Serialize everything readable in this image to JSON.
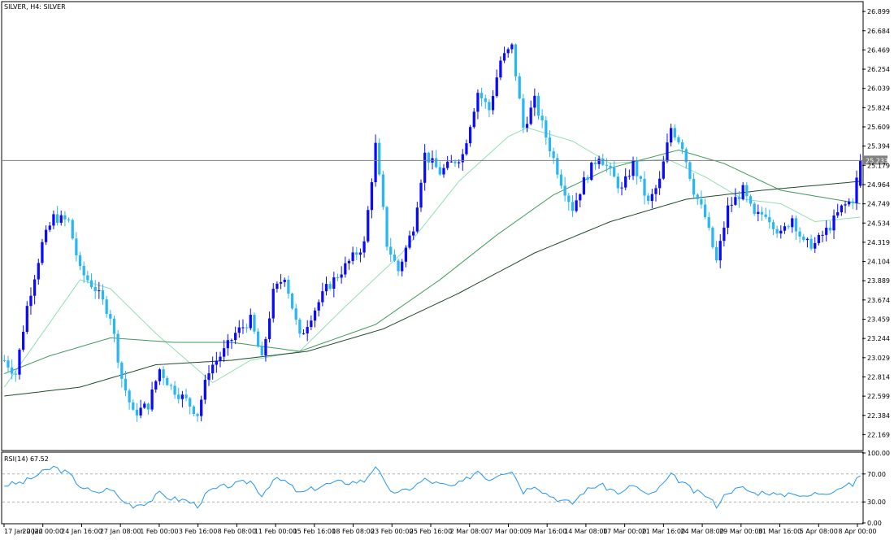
{
  "window": {
    "title": "SILVER, H4:  SILVER"
  },
  "colors": {
    "bull": "#0a0aff",
    "bear": "#29b6f6",
    "ma_fast": "#8fe0b0",
    "ma_mid": "#3f9a5a",
    "ma_slow": "#1e4d2b",
    "rsi": "#2196f3",
    "price_line": "#808080",
    "price_tag_bg": "#808080"
  },
  "chart_data": [
    {
      "type": "line",
      "title": "SILVER, H4:  SILVER",
      "chart_style": "candlestick",
      "ylim": [
        22.0,
        27.0
      ],
      "y_ticks": [
        "26.899",
        "26.684",
        "26.469",
        "26.254",
        "26.039",
        "25.824",
        "25.609",
        "25.394",
        "25.179",
        "24.964",
        "24.749",
        "24.534",
        "24.319",
        "24.104",
        "23.889",
        "23.674",
        "23.459",
        "23.244",
        "23.029",
        "22.814",
        "22.599",
        "22.384",
        "22.169"
      ],
      "current_price_tag": "25.233",
      "current_price": 25.233,
      "x_labels": [
        "17 Jan 2022",
        "20 Jan 00:00",
        "24 Jan 16:00",
        "27 Jan 08:00",
        "1 Feb 00:00",
        "3 Feb 16:00",
        "8 Feb 08:00",
        "11 Feb 00:00",
        "15 Feb 16:00",
        "18 Feb 08:00",
        "23 Feb 00:00",
        "25 Feb 16:00",
        "2 Mar 08:00",
        "7 Mar 00:00",
        "9 Mar 16:00",
        "14 Mar 08:00",
        "17 Mar 00:00",
        "21 Mar 16:00",
        "24 Mar 08:00",
        "29 Mar 00:00",
        "31 Mar 16:00",
        "5 Apr 08:00",
        "8 Apr 00:00"
      ],
      "close_anchors": [
        [
          0,
          23.0
        ],
        [
          3,
          22.85
        ],
        [
          6,
          23.6
        ],
        [
          10,
          24.3
        ],
        [
          13,
          24.6
        ],
        [
          17,
          24.55
        ],
        [
          20,
          24.0
        ],
        [
          24,
          23.8
        ],
        [
          28,
          23.5
        ],
        [
          31,
          22.8
        ],
        [
          34,
          22.4
        ],
        [
          38,
          22.5
        ],
        [
          41,
          22.9
        ],
        [
          44,
          22.7
        ],
        [
          48,
          22.55
        ],
        [
          51,
          22.4
        ],
        [
          54,
          22.9
        ],
        [
          58,
          23.1
        ],
        [
          61,
          23.3
        ],
        [
          65,
          23.45
        ],
        [
          68,
          23.0
        ],
        [
          71,
          23.75
        ],
        [
          74,
          23.95
        ],
        [
          78,
          23.25
        ],
        [
          81,
          23.5
        ],
        [
          85,
          23.8
        ],
        [
          88,
          23.95
        ],
        [
          91,
          24.1
        ],
        [
          95,
          24.3
        ],
        [
          98,
          25.4
        ],
        [
          101,
          24.3
        ],
        [
          104,
          24.0
        ],
        [
          108,
          24.5
        ],
        [
          111,
          25.3
        ],
        [
          115,
          25.1
        ],
        [
          118,
          25.2
        ],
        [
          121,
          25.3
        ],
        [
          125,
          26.0
        ],
        [
          128,
          25.8
        ],
        [
          131,
          26.35
        ],
        [
          134,
          26.5
        ],
        [
          137,
          25.6
        ],
        [
          140,
          25.9
        ],
        [
          143,
          25.5
        ],
        [
          147,
          25.0
        ],
        [
          150,
          24.7
        ],
        [
          153,
          25.0
        ],
        [
          157,
          25.3
        ],
        [
          160,
          25.1
        ],
        [
          163,
          24.9
        ],
        [
          166,
          25.2
        ],
        [
          170,
          24.75
        ],
        [
          173,
          25.0
        ],
        [
          176,
          25.6
        ],
        [
          179,
          25.4
        ],
        [
          182,
          24.9
        ],
        [
          185,
          24.6
        ],
        [
          188,
          24.1
        ],
        [
          191,
          24.7
        ],
        [
          195,
          24.9
        ],
        [
          198,
          24.6
        ],
        [
          201,
          24.65
        ],
        [
          205,
          24.4
        ],
        [
          208,
          24.6
        ],
        [
          211,
          24.3
        ],
        [
          214,
          24.3
        ],
        [
          218,
          24.5
        ],
        [
          221,
          24.7
        ],
        [
          224,
          24.8
        ],
        [
          226,
          25.233
        ]
      ],
      "ma_fast_anchors": [
        [
          0,
          22.7
        ],
        [
          20,
          23.9
        ],
        [
          28,
          23.8
        ],
        [
          40,
          23.3
        ],
        [
          55,
          22.75
        ],
        [
          65,
          23.0
        ],
        [
          78,
          23.1
        ],
        [
          90,
          23.6
        ],
        [
          105,
          24.2
        ],
        [
          120,
          25.0
        ],
        [
          133,
          25.5
        ],
        [
          138,
          25.6
        ],
        [
          150,
          25.45
        ],
        [
          160,
          25.2
        ],
        [
          175,
          25.25
        ],
        [
          185,
          25.05
        ],
        [
          195,
          24.8
        ],
        [
          205,
          24.75
        ],
        [
          214,
          24.55
        ],
        [
          226,
          24.6
        ]
      ],
      "ma_mid_anchors": [
        [
          0,
          22.85
        ],
        [
          12,
          23.05
        ],
        [
          28,
          23.25
        ],
        [
          45,
          23.2
        ],
        [
          60,
          23.2
        ],
        [
          78,
          23.1
        ],
        [
          98,
          23.4
        ],
        [
          115,
          23.9
        ],
        [
          130,
          24.4
        ],
        [
          145,
          24.85
        ],
        [
          160,
          25.15
        ],
        [
          178,
          25.35
        ],
        [
          190,
          25.2
        ],
        [
          205,
          24.9
        ],
        [
          226,
          24.75
        ]
      ],
      "ma_slow_anchors": [
        [
          0,
          22.6
        ],
        [
          20,
          22.7
        ],
        [
          40,
          22.95
        ],
        [
          60,
          23.0
        ],
        [
          80,
          23.1
        ],
        [
          100,
          23.35
        ],
        [
          120,
          23.75
        ],
        [
          140,
          24.2
        ],
        [
          160,
          24.55
        ],
        [
          180,
          24.8
        ],
        [
          200,
          24.9
        ],
        [
          226,
          25.0
        ]
      ]
    },
    {
      "type": "line",
      "title": "RSI(14) 67.52",
      "indicator_value": 67.52,
      "ylim": [
        0,
        100
      ],
      "y_ticks": [
        "100.00",
        "70.00",
        "30.00",
        "0.00"
      ],
      "levels": [
        70,
        30
      ],
      "rsi_anchors": [
        [
          0,
          54
        ],
        [
          5,
          58
        ],
        [
          10,
          72
        ],
        [
          13,
          80
        ],
        [
          17,
          70
        ],
        [
          20,
          53
        ],
        [
          24,
          42
        ],
        [
          28,
          50
        ],
        [
          31,
          32
        ],
        [
          34,
          25
        ],
        [
          38,
          30
        ],
        [
          41,
          42
        ],
        [
          44,
          35
        ],
        [
          48,
          32
        ],
        [
          51,
          25
        ],
        [
          54,
          45
        ],
        [
          58,
          52
        ],
        [
          61,
          55
        ],
        [
          65,
          60
        ],
        [
          68,
          40
        ],
        [
          71,
          62
        ],
        [
          74,
          60
        ],
        [
          78,
          42
        ],
        [
          81,
          48
        ],
        [
          85,
          55
        ],
        [
          88,
          58
        ],
        [
          91,
          58
        ],
        [
          95,
          60
        ],
        [
          98,
          82
        ],
        [
          101,
          50
        ],
        [
          104,
          42
        ],
        [
          108,
          52
        ],
        [
          111,
          62
        ],
        [
          115,
          55
        ],
        [
          118,
          52
        ],
        [
          121,
          58
        ],
        [
          125,
          75
        ],
        [
          128,
          62
        ],
        [
          131,
          72
        ],
        [
          134,
          75
        ],
        [
          137,
          45
        ],
        [
          140,
          55
        ],
        [
          143,
          42
        ],
        [
          147,
          32
        ],
        [
          150,
          28
        ],
        [
          153,
          45
        ],
        [
          157,
          55
        ],
        [
          160,
          48
        ],
        [
          163,
          42
        ],
        [
          166,
          55
        ],
        [
          170,
          38
        ],
        [
          173,
          50
        ],
        [
          176,
          68
        ],
        [
          179,
          58
        ],
        [
          182,
          45
        ],
        [
          185,
          40
        ],
        [
          188,
          25
        ],
        [
          191,
          45
        ],
        [
          195,
          50
        ],
        [
          198,
          42
        ],
        [
          201,
          45
        ],
        [
          205,
          38
        ],
        [
          208,
          45
        ],
        [
          211,
          36
        ],
        [
          214,
          42
        ],
        [
          218,
          45
        ],
        [
          221,
          52
        ],
        [
          224,
          55
        ],
        [
          226,
          67.52
        ]
      ]
    }
  ]
}
